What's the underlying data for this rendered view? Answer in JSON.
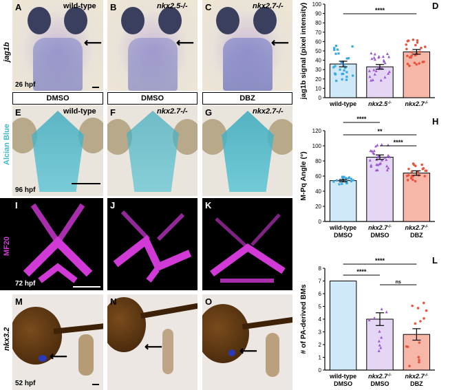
{
  "row_labels": {
    "jag1b": "jag1b",
    "alcian": "Alcian Blue",
    "mf20": "MF20",
    "nkx": "nkx3.2"
  },
  "stages": {
    "r1": "26 hpf",
    "r2": "96 hpf",
    "r3": "72 hpf",
    "r4": "52 hpf"
  },
  "treatments": [
    "DMSO",
    "DMSO",
    "DBZ"
  ],
  "panels": {
    "A": {
      "letter": "A",
      "genotype": "wild-type"
    },
    "B": {
      "letter": "B",
      "genotype": "nkx2.5-/-"
    },
    "C": {
      "letter": "C",
      "genotype": "nkx2.7-/-"
    },
    "E": {
      "letter": "E",
      "genotype": "wild-type"
    },
    "F": {
      "letter": "F",
      "genotype": "nkx2.7-/-"
    },
    "G": {
      "letter": "G",
      "genotype": "nkx2.7-/-"
    },
    "I": {
      "letter": "I"
    },
    "J": {
      "letter": "J"
    },
    "K": {
      "letter": "K"
    },
    "M": {
      "letter": "M"
    },
    "N": {
      "letter": "N"
    },
    "O": {
      "letter": "O"
    }
  },
  "colors": {
    "blue": "#3aa8e0",
    "purple": "#9b59d0",
    "red": "#e8553f",
    "magenta": "#d23ad8",
    "alcian": "#3ab8c8"
  },
  "chart_data": [
    {
      "panel": "D",
      "type": "bar",
      "ylabel": "jag1b signal (pixel intensity)",
      "ylim": [
        0,
        100
      ],
      "yticks": [
        0,
        10,
        20,
        30,
        40,
        50,
        60,
        70,
        80,
        90,
        100
      ],
      "categories": [
        "wild-type",
        "nkx2.5-/-",
        "nkx2.7-/-"
      ],
      "values": [
        36,
        33,
        49
      ],
      "errors": [
        3,
        2.5,
        2.5
      ],
      "significance": [
        {
          "from": 0,
          "to": 2,
          "label": "****"
        }
      ]
    },
    {
      "panel": "H",
      "type": "bar",
      "ylabel": "M-Pq Angle (°)",
      "ylim": [
        0,
        120
      ],
      "yticks": [
        0,
        20,
        40,
        60,
        80,
        100,
        120
      ],
      "categories": [
        "wild-type DMSO",
        "nkx2.7-/- DMSO",
        "nkx2.7-/- DBZ"
      ],
      "values": [
        54,
        85,
        64
      ],
      "errors": [
        1.5,
        3,
        3
      ],
      "significance": [
        {
          "from": 0,
          "to": 1,
          "label": "****"
        },
        {
          "from": 1,
          "to": 2,
          "label": "****"
        },
        {
          "from": 0,
          "to": 2,
          "label": "**"
        }
      ]
    },
    {
      "panel": "L",
      "type": "bar",
      "ylabel": "# of PA-derived BMs",
      "ylim": [
        0,
        8
      ],
      "yticks": [
        0,
        1,
        2,
        3,
        4,
        5,
        6,
        7,
        8
      ],
      "categories": [
        "wild-type DMSO",
        "nkx2.7-/- DMSO",
        "nkx2.7-/- DBZ"
      ],
      "values": [
        7,
        4,
        2.8
      ],
      "errors": [
        0,
        0.5,
        0.45
      ],
      "significance": [
        {
          "from": 0,
          "to": 1,
          "label": "****"
        },
        {
          "from": 0,
          "to": 2,
          "label": "****"
        },
        {
          "from": 1,
          "to": 2,
          "label": "ns"
        }
      ]
    }
  ],
  "xlabels": {
    "D": [
      [
        "wild-type",
        ""
      ],
      [
        "nkx2.5",
        "-/-"
      ],
      [
        "nkx2.7",
        "-/-"
      ]
    ],
    "H": [
      [
        "wild-type",
        "DMSO"
      ],
      [
        "nkx2.7",
        "DMSO"
      ],
      [
        "nkx2.7",
        "DBZ"
      ]
    ],
    "L": [
      [
        "wild-type",
        "DMSO"
      ],
      [
        "nkx2.7",
        "DMSO"
      ],
      [
        "nkx2.7",
        "DBZ"
      ]
    ]
  },
  "chart_letters": {
    "D": "D",
    "H": "H",
    "L": "L"
  }
}
